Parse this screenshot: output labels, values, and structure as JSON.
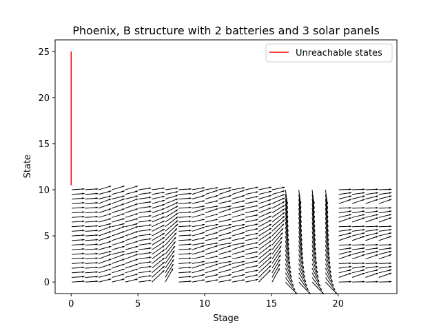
{
  "chart_data": {
    "type": "quiver",
    "title": "Phoenix, B structure with 2 batteries and 3 solar panels",
    "xlabel": "Stage",
    "ylabel": "State",
    "xlim": [
      -1.2,
      24.4
    ],
    "ylim": [
      -1.25,
      26.25
    ],
    "xticks": [
      0,
      5,
      10,
      15,
      20
    ],
    "yticks": [
      0,
      5,
      10,
      15,
      20,
      25
    ],
    "grid": false,
    "legend": {
      "location": "upper right",
      "entries": [
        "Unreachable states"
      ]
    },
    "series": [
      {
        "name": "Unreachable states",
        "type": "line",
        "color": "#ff0000",
        "x": [
          0,
          0
        ],
        "y": [
          10.5,
          25
        ]
      }
    ],
    "vector_field": {
      "stages": [
        0,
        24
      ],
      "states": [
        0,
        10
      ],
      "state_step": 0.5,
      "color": "#000000",
      "description_of_regions": [
        {
          "stages": [
            0,
            8
          ],
          "behavior": "mostly horizontal, upward curving near stages 5-8"
        },
        {
          "stages": [
            8,
            16
          ],
          "behavior": "horizontal with steep upward curve near stages 13-16"
        },
        {
          "stages": [
            16,
            20
          ],
          "behavior": "steep downward arrows"
        },
        {
          "stages": [
            20,
            24
          ],
          "behavior": "mostly horizontal"
        }
      ]
    }
  }
}
